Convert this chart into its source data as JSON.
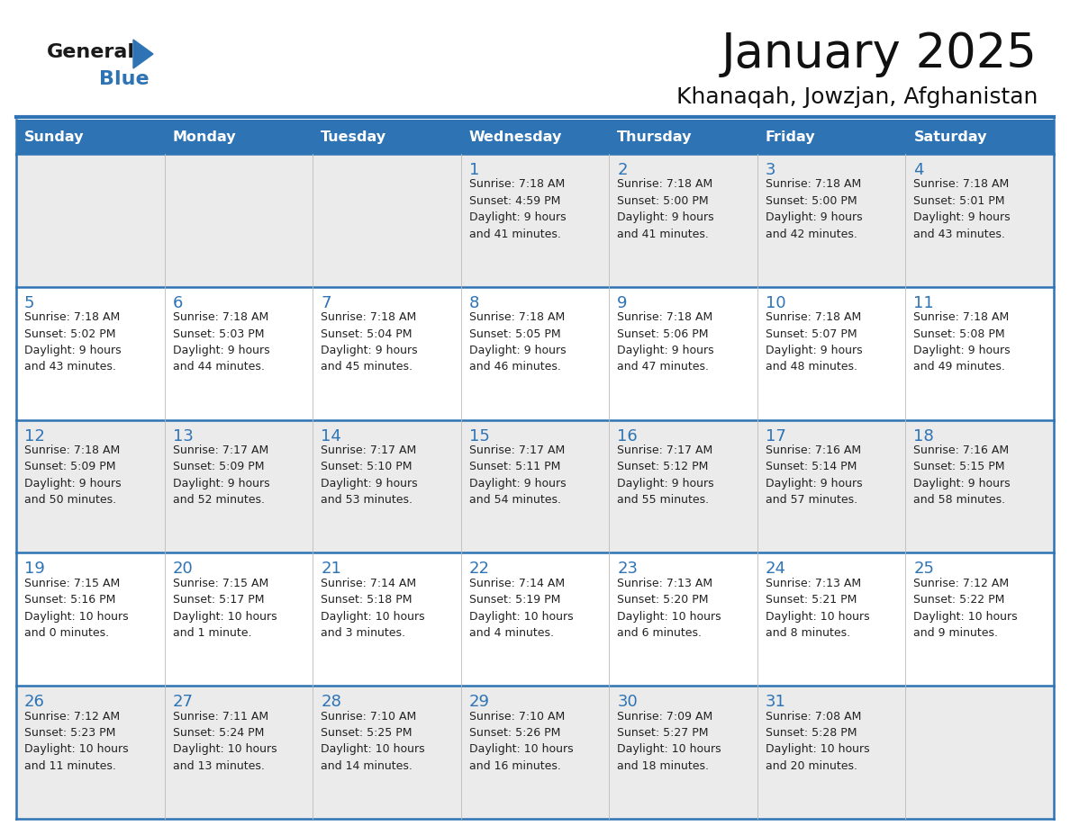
{
  "title": "January 2025",
  "subtitle": "Khanaqah, Jowzjan, Afghanistan",
  "header_bg": "#2E74B5",
  "header_text": "#FFFFFF",
  "cell_bg_light": "#EBEBEB",
  "cell_bg_white": "#FFFFFF",
  "border_color": "#2E74B5",
  "day_names": [
    "Sunday",
    "Monday",
    "Tuesday",
    "Wednesday",
    "Thursday",
    "Friday",
    "Saturday"
  ],
  "days_data": [
    {
      "day": 1,
      "col": 3,
      "row": 0,
      "sunrise": "7:18 AM",
      "sunset": "4:59 PM",
      "daylight_h": "9 hours",
      "daylight_m": "and 41 minutes."
    },
    {
      "day": 2,
      "col": 4,
      "row": 0,
      "sunrise": "7:18 AM",
      "sunset": "5:00 PM",
      "daylight_h": "9 hours",
      "daylight_m": "and 41 minutes."
    },
    {
      "day": 3,
      "col": 5,
      "row": 0,
      "sunrise": "7:18 AM",
      "sunset": "5:00 PM",
      "daylight_h": "9 hours",
      "daylight_m": "and 42 minutes."
    },
    {
      "day": 4,
      "col": 6,
      "row": 0,
      "sunrise": "7:18 AM",
      "sunset": "5:01 PM",
      "daylight_h": "9 hours",
      "daylight_m": "and 43 minutes."
    },
    {
      "day": 5,
      "col": 0,
      "row": 1,
      "sunrise": "7:18 AM",
      "sunset": "5:02 PM",
      "daylight_h": "9 hours",
      "daylight_m": "and 43 minutes."
    },
    {
      "day": 6,
      "col": 1,
      "row": 1,
      "sunrise": "7:18 AM",
      "sunset": "5:03 PM",
      "daylight_h": "9 hours",
      "daylight_m": "and 44 minutes."
    },
    {
      "day": 7,
      "col": 2,
      "row": 1,
      "sunrise": "7:18 AM",
      "sunset": "5:04 PM",
      "daylight_h": "9 hours",
      "daylight_m": "and 45 minutes."
    },
    {
      "day": 8,
      "col": 3,
      "row": 1,
      "sunrise": "7:18 AM",
      "sunset": "5:05 PM",
      "daylight_h": "9 hours",
      "daylight_m": "and 46 minutes."
    },
    {
      "day": 9,
      "col": 4,
      "row": 1,
      "sunrise": "7:18 AM",
      "sunset": "5:06 PM",
      "daylight_h": "9 hours",
      "daylight_m": "and 47 minutes."
    },
    {
      "day": 10,
      "col": 5,
      "row": 1,
      "sunrise": "7:18 AM",
      "sunset": "5:07 PM",
      "daylight_h": "9 hours",
      "daylight_m": "and 48 minutes."
    },
    {
      "day": 11,
      "col": 6,
      "row": 1,
      "sunrise": "7:18 AM",
      "sunset": "5:08 PM",
      "daylight_h": "9 hours",
      "daylight_m": "and 49 minutes."
    },
    {
      "day": 12,
      "col": 0,
      "row": 2,
      "sunrise": "7:18 AM",
      "sunset": "5:09 PM",
      "daylight_h": "9 hours",
      "daylight_m": "and 50 minutes."
    },
    {
      "day": 13,
      "col": 1,
      "row": 2,
      "sunrise": "7:17 AM",
      "sunset": "5:09 PM",
      "daylight_h": "9 hours",
      "daylight_m": "and 52 minutes."
    },
    {
      "day": 14,
      "col": 2,
      "row": 2,
      "sunrise": "7:17 AM",
      "sunset": "5:10 PM",
      "daylight_h": "9 hours",
      "daylight_m": "and 53 minutes."
    },
    {
      "day": 15,
      "col": 3,
      "row": 2,
      "sunrise": "7:17 AM",
      "sunset": "5:11 PM",
      "daylight_h": "9 hours",
      "daylight_m": "and 54 minutes."
    },
    {
      "day": 16,
      "col": 4,
      "row": 2,
      "sunrise": "7:17 AM",
      "sunset": "5:12 PM",
      "daylight_h": "9 hours",
      "daylight_m": "and 55 minutes."
    },
    {
      "day": 17,
      "col": 5,
      "row": 2,
      "sunrise": "7:16 AM",
      "sunset": "5:14 PM",
      "daylight_h": "9 hours",
      "daylight_m": "and 57 minutes."
    },
    {
      "day": 18,
      "col": 6,
      "row": 2,
      "sunrise": "7:16 AM",
      "sunset": "5:15 PM",
      "daylight_h": "9 hours",
      "daylight_m": "and 58 minutes."
    },
    {
      "day": 19,
      "col": 0,
      "row": 3,
      "sunrise": "7:15 AM",
      "sunset": "5:16 PM",
      "daylight_h": "10 hours",
      "daylight_m": "and 0 minutes."
    },
    {
      "day": 20,
      "col": 1,
      "row": 3,
      "sunrise": "7:15 AM",
      "sunset": "5:17 PM",
      "daylight_h": "10 hours",
      "daylight_m": "and 1 minute."
    },
    {
      "day": 21,
      "col": 2,
      "row": 3,
      "sunrise": "7:14 AM",
      "sunset": "5:18 PM",
      "daylight_h": "10 hours",
      "daylight_m": "and 3 minutes."
    },
    {
      "day": 22,
      "col": 3,
      "row": 3,
      "sunrise": "7:14 AM",
      "sunset": "5:19 PM",
      "daylight_h": "10 hours",
      "daylight_m": "and 4 minutes."
    },
    {
      "day": 23,
      "col": 4,
      "row": 3,
      "sunrise": "7:13 AM",
      "sunset": "5:20 PM",
      "daylight_h": "10 hours",
      "daylight_m": "and 6 minutes."
    },
    {
      "day": 24,
      "col": 5,
      "row": 3,
      "sunrise": "7:13 AM",
      "sunset": "5:21 PM",
      "daylight_h": "10 hours",
      "daylight_m": "and 8 minutes."
    },
    {
      "day": 25,
      "col": 6,
      "row": 3,
      "sunrise": "7:12 AM",
      "sunset": "5:22 PM",
      "daylight_h": "10 hours",
      "daylight_m": "and 9 minutes."
    },
    {
      "day": 26,
      "col": 0,
      "row": 4,
      "sunrise": "7:12 AM",
      "sunset": "5:23 PM",
      "daylight_h": "10 hours",
      "daylight_m": "and 11 minutes."
    },
    {
      "day": 27,
      "col": 1,
      "row": 4,
      "sunrise": "7:11 AM",
      "sunset": "5:24 PM",
      "daylight_h": "10 hours",
      "daylight_m": "and 13 minutes."
    },
    {
      "day": 28,
      "col": 2,
      "row": 4,
      "sunrise": "7:10 AM",
      "sunset": "5:25 PM",
      "daylight_h": "10 hours",
      "daylight_m": "and 14 minutes."
    },
    {
      "day": 29,
      "col": 3,
      "row": 4,
      "sunrise": "7:10 AM",
      "sunset": "5:26 PM",
      "daylight_h": "10 hours",
      "daylight_m": "and 16 minutes."
    },
    {
      "day": 30,
      "col": 4,
      "row": 4,
      "sunrise": "7:09 AM",
      "sunset": "5:27 PM",
      "daylight_h": "10 hours",
      "daylight_m": "and 18 minutes."
    },
    {
      "day": 31,
      "col": 5,
      "row": 4,
      "sunrise": "7:08 AM",
      "sunset": "5:28 PM",
      "daylight_h": "10 hours",
      "daylight_m": "and 20 minutes."
    }
  ],
  "logo_text_general": "General",
  "logo_text_blue": "Blue",
  "text_color_dark": "#222222",
  "text_color_blue": "#2E74B5",
  "logo_general_color": "#1a1a1a"
}
